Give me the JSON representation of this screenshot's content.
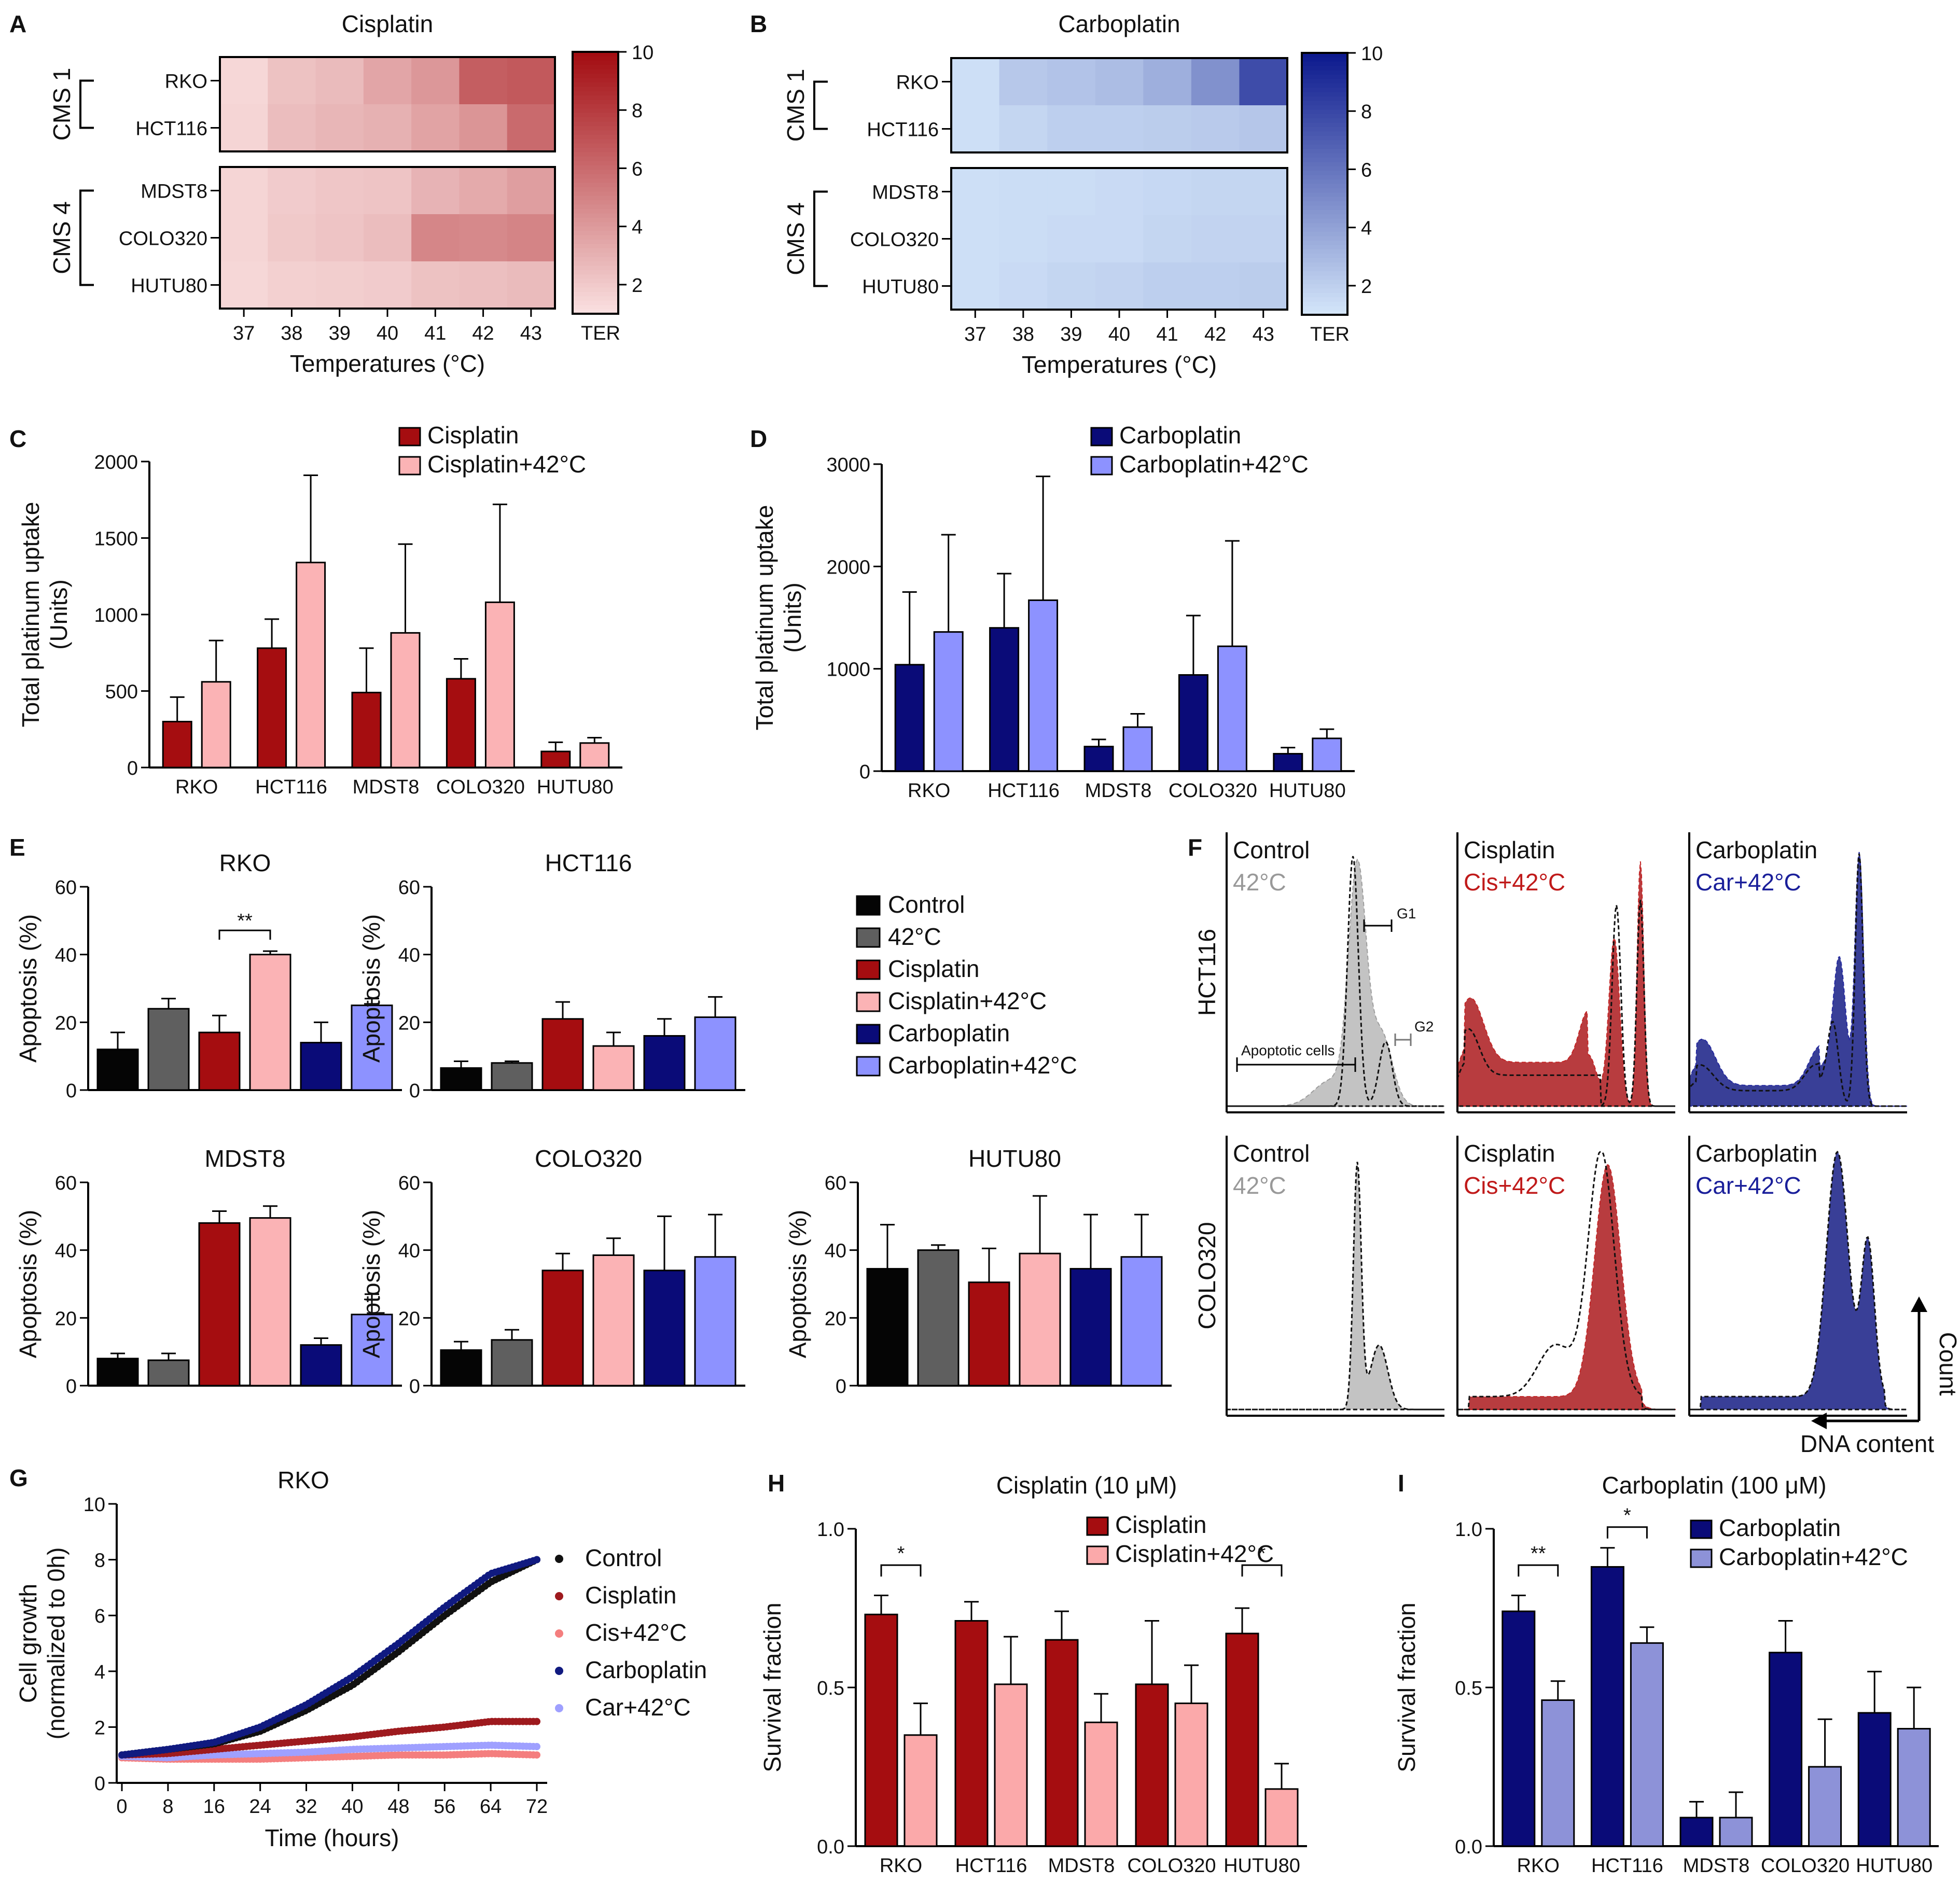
{
  "chart_data": [
    {
      "id": "A",
      "type": "heatmap",
      "label": "A",
      "title": "Cisplatin",
      "rows": [
        "RKO",
        "HCT116",
        "MDST8",
        "COLO320",
        "HUTU80"
      ],
      "groups": [
        {
          "name": "CMS 1",
          "rows": [
            "RKO",
            "HCT116"
          ]
        },
        {
          "name": "CMS 4",
          "rows": [
            "MDST8",
            "COLO320",
            "HUTU80"
          ]
        }
      ],
      "columns": [
        "37",
        "38",
        "39",
        "40",
        "41",
        "42",
        "43"
      ],
      "xlabel": "Temperatures (°C)",
      "scale": {
        "label": "TER",
        "min": 1,
        "max": 10,
        "ticks": [
          "2",
          "4",
          "6",
          "8",
          "10"
        ],
        "color_low": "#fbe3e3",
        "color_high": "#a30d12"
      },
      "values": [
        [
          1.5,
          2.4,
          2.7,
          3.6,
          4.2,
          6.6,
          6.8
        ],
        [
          1.6,
          2.6,
          2.9,
          3.1,
          3.7,
          4.3,
          6.1
        ],
        [
          1.6,
          2.0,
          2.2,
          2.3,
          3.0,
          3.4,
          3.9
        ],
        [
          1.6,
          2.1,
          2.3,
          2.6,
          4.9,
          4.8,
          5.0
        ],
        [
          1.5,
          1.8,
          1.9,
          2.0,
          2.4,
          2.5,
          2.7
        ]
      ]
    },
    {
      "id": "B",
      "type": "heatmap",
      "label": "B",
      "title": "Carboplatin",
      "rows": [
        "RKO",
        "HCT116",
        "MDST8",
        "COLO320",
        "HUTU80"
      ],
      "groups": [
        {
          "name": "CMS 1",
          "rows": [
            "RKO",
            "HCT116"
          ]
        },
        {
          "name": "CMS 4",
          "rows": [
            "MDST8",
            "COLO320",
            "HUTU80"
          ]
        }
      ],
      "columns": [
        "37",
        "38",
        "39",
        "40",
        "41",
        "42",
        "43"
      ],
      "xlabel": "Temperatures (°C)",
      "scale": {
        "label": "TER",
        "min": 1,
        "max": 10,
        "ticks": [
          "2",
          "4",
          "6",
          "8",
          "10"
        ],
        "color_low": "#d6e8fb",
        "color_high": "#0d1a8e"
      },
      "values": [
        [
          1.4,
          2.4,
          2.6,
          2.9,
          3.5,
          4.8,
          7.8
        ],
        [
          1.4,
          1.8,
          2.1,
          2.1,
          2.2,
          2.3,
          2.5
        ],
        [
          1.4,
          1.5,
          1.5,
          1.6,
          1.7,
          1.8,
          1.8
        ],
        [
          1.4,
          1.5,
          1.6,
          1.6,
          1.8,
          1.9,
          1.9
        ],
        [
          1.4,
          1.6,
          1.8,
          1.9,
          2.1,
          2.1,
          2.2
        ]
      ]
    },
    {
      "id": "C",
      "type": "bar",
      "label": "C",
      "categories": [
        "RKO",
        "HCT116",
        "MDST8",
        "COLO320",
        "HUTU80"
      ],
      "series": [
        {
          "name": "Cisplatin",
          "color": "#a50d10",
          "values": [
            300,
            780,
            490,
            580,
            105
          ],
          "errors": [
            160,
            190,
            290,
            130,
            60
          ]
        },
        {
          "name": "Cisplatin+42°C",
          "color": "#fbb3b5",
          "values": [
            560,
            1340,
            880,
            1080,
            160
          ],
          "errors": [
            270,
            570,
            580,
            640,
            35
          ]
        }
      ],
      "ylabel": "Total platinum uptake",
      "ylabel2": "(Units)",
      "ylim": [
        0,
        2000
      ],
      "yticks": [
        "0",
        "500",
        "1000",
        "1500",
        "2000"
      ]
    },
    {
      "id": "D",
      "type": "bar",
      "label": "D",
      "categories": [
        "RKO",
        "HCT116",
        "MDST8",
        "COLO320",
        "HUTU80"
      ],
      "series": [
        {
          "name": "Carboplatin",
          "color": "#0a0b78",
          "values": [
            1040,
            1400,
            240,
            940,
            170
          ],
          "errors": [
            710,
            530,
            70,
            580,
            60
          ]
        },
        {
          "name": "Carboplatin+42°C",
          "color": "#8d92ff",
          "values": [
            1360,
            1670,
            430,
            1220,
            320
          ],
          "errors": [
            950,
            1210,
            130,
            1030,
            90
          ]
        }
      ],
      "ylabel": "Total platinum uptake",
      "ylabel2": "(Units)",
      "ylim": [
        0,
        3000
      ],
      "yticks": [
        "0",
        "1000",
        "2000",
        "3000"
      ]
    },
    {
      "id": "E",
      "type": "bar",
      "label": "E",
      "legend": {
        "categories": [
          "Control",
          "42°C",
          "Cisplatin",
          "Cisplatin+42°C",
          "Carboplatin",
          "Carboplatin+42°C"
        ],
        "colors": [
          "#050505",
          "#5f5f5f",
          "#a50d10",
          "#fbb3b5",
          "#0a0b78",
          "#8d92ff"
        ]
      },
      "ylabel": "Apoptosis (%)",
      "ylim": [
        0,
        60
      ],
      "yticks": [
        "0",
        "20",
        "40",
        "60"
      ],
      "panels": [
        {
          "title": "RKO",
          "values": [
            12,
            24,
            17,
            40,
            14,
            25
          ],
          "errors": [
            5,
            3,
            5,
            1,
            6,
            2
          ],
          "sig": {
            "from": 2,
            "to": 3,
            "text": "**"
          }
        },
        {
          "title": "HCT116",
          "values": [
            6.5,
            8,
            21,
            13,
            16,
            21.5
          ],
          "errors": [
            2,
            0.5,
            5,
            4,
            5,
            6
          ]
        },
        {
          "title": "MDST8",
          "values": [
            8,
            7.5,
            48,
            49.5,
            12,
            21
          ],
          "errors": [
            1.5,
            2,
            3.5,
            3.5,
            2,
            6
          ]
        },
        {
          "title": "COLO320",
          "values": [
            10.5,
            13.5,
            34,
            38.5,
            34,
            38
          ],
          "errors": [
            2.5,
            3,
            5,
            5,
            16,
            12.5
          ]
        },
        {
          "title": "HUTU80",
          "values": [
            34.5,
            40,
            30.5,
            39,
            34.5,
            38
          ],
          "errors": [
            13,
            1.5,
            10,
            17,
            16,
            12.5
          ]
        }
      ]
    },
    {
      "id": "F",
      "type": "area",
      "label": "F",
      "rows": [
        "HCT116",
        "COLO320"
      ],
      "panels": [
        {
          "title": "Control",
          "subtitle": "42°C",
          "subtitle_color": "#999999",
          "fill": "#c0c0c0"
        },
        {
          "title": "Cisplatin",
          "subtitle": "Cis+42°C",
          "subtitle_color": "#c01a1a",
          "fill": "#b53235"
        },
        {
          "title": "Carboplatin",
          "subtitle": "Car+42°C",
          "subtitle_color": "#1a1f9a",
          "fill": "#2f3592"
        }
      ],
      "annotations": [
        "G1",
        "G2",
        "Apoptotic cells"
      ],
      "axis_y": "Count",
      "axis_x": "DNA content"
    },
    {
      "id": "G",
      "type": "scatter",
      "label": "G",
      "title": "RKO",
      "xlabel": "Time (hours)",
      "ylabel": "Cell growth",
      "ylabel2": "(normalized to 0h)",
      "xlim": [
        0,
        72
      ],
      "ylim": [
        0,
        10
      ],
      "xticks": [
        "0",
        "8",
        "16",
        "24",
        "32",
        "40",
        "48",
        "56",
        "64",
        "72"
      ],
      "yticks": [
        "0",
        "2",
        "4",
        "6",
        "8",
        "10"
      ],
      "series": [
        {
          "name": "Control",
          "color": "#111111",
          "x": [
            0,
            8,
            16,
            24,
            32,
            40,
            48,
            56,
            64,
            72
          ],
          "y": [
            1.0,
            1.2,
            1.4,
            1.85,
            2.6,
            3.5,
            4.7,
            6.0,
            7.2,
            8.0
          ]
        },
        {
          "name": "Cisplatin",
          "color": "#9e1a1e",
          "x": [
            0,
            8,
            16,
            24,
            32,
            40,
            48,
            56,
            64,
            72
          ],
          "y": [
            1.0,
            1.05,
            1.2,
            1.35,
            1.5,
            1.65,
            1.85,
            2.0,
            2.2,
            2.2
          ]
        },
        {
          "name": "Cis+42°C",
          "color": "#f47e7e",
          "x": [
            0,
            8,
            16,
            24,
            32,
            40,
            48,
            56,
            64,
            72
          ],
          "y": [
            0.9,
            0.85,
            0.85,
            0.85,
            0.9,
            0.95,
            1.0,
            1.0,
            1.05,
            1.0
          ]
        },
        {
          "name": "Carboplatin",
          "color": "#101a80",
          "x": [
            0,
            8,
            16,
            24,
            32,
            40,
            48,
            56,
            64,
            72
          ],
          "y": [
            1.0,
            1.2,
            1.45,
            2.0,
            2.8,
            3.8,
            5.0,
            6.3,
            7.5,
            8.0
          ]
        },
        {
          "name": "Car+42°C",
          "color": "#9fa0ff",
          "x": [
            0,
            8,
            16,
            24,
            32,
            40,
            48,
            56,
            64,
            72
          ],
          "y": [
            0.95,
            0.9,
            1.0,
            1.05,
            1.1,
            1.2,
            1.25,
            1.3,
            1.35,
            1.3
          ]
        }
      ]
    },
    {
      "id": "H",
      "type": "bar",
      "label": "H",
      "title": "Cisplatin (10 μM)",
      "categories": [
        "RKO",
        "HCT116",
        "MDST8",
        "COLO320",
        "HUTU80"
      ],
      "series": [
        {
          "name": "Cisplatin",
          "color": "#a50d10",
          "values": [
            0.73,
            0.71,
            0.65,
            0.51,
            0.67
          ],
          "errors": [
            0.06,
            0.06,
            0.09,
            0.2,
            0.08
          ]
        },
        {
          "name": "Cisplatin+42°C",
          "color": "#fba9aa",
          "values": [
            0.35,
            0.51,
            0.39,
            0.45,
            0.18
          ],
          "errors": [
            0.1,
            0.15,
            0.09,
            0.12,
            0.08
          ]
        }
      ],
      "sig": [
        {
          "group": 0,
          "text": "*"
        },
        {
          "group": 4,
          "text": "*"
        }
      ],
      "ylabel": "Survival fraction",
      "ylim": [
        0,
        1
      ],
      "yticks": [
        "0.0",
        "0.5",
        "1.0"
      ]
    },
    {
      "id": "I",
      "type": "bar",
      "label": "I",
      "title": "Carboplatin (100 μM)",
      "categories": [
        "RKO",
        "HCT116",
        "MDST8",
        "COLO320",
        "HUTU80"
      ],
      "series": [
        {
          "name": "Carboplatin",
          "color": "#0a0b78",
          "values": [
            0.74,
            0.88,
            0.09,
            0.61,
            0.42
          ],
          "errors": [
            0.05,
            0.06,
            0.05,
            0.1,
            0.13
          ]
        },
        {
          "name": "Carboplatin+42°C",
          "color": "#8d92d8",
          "values": [
            0.46,
            0.64,
            0.09,
            0.25,
            0.37
          ],
          "errors": [
            0.06,
            0.05,
            0.08,
            0.15,
            0.13
          ]
        }
      ],
      "sig": [
        {
          "group": 0,
          "text": "**"
        },
        {
          "group": 1,
          "text": "*"
        }
      ],
      "ylabel": "Survival fraction",
      "ylim": [
        0,
        1
      ],
      "yticks": [
        "0.0",
        "0.5",
        "1.0"
      ]
    }
  ]
}
